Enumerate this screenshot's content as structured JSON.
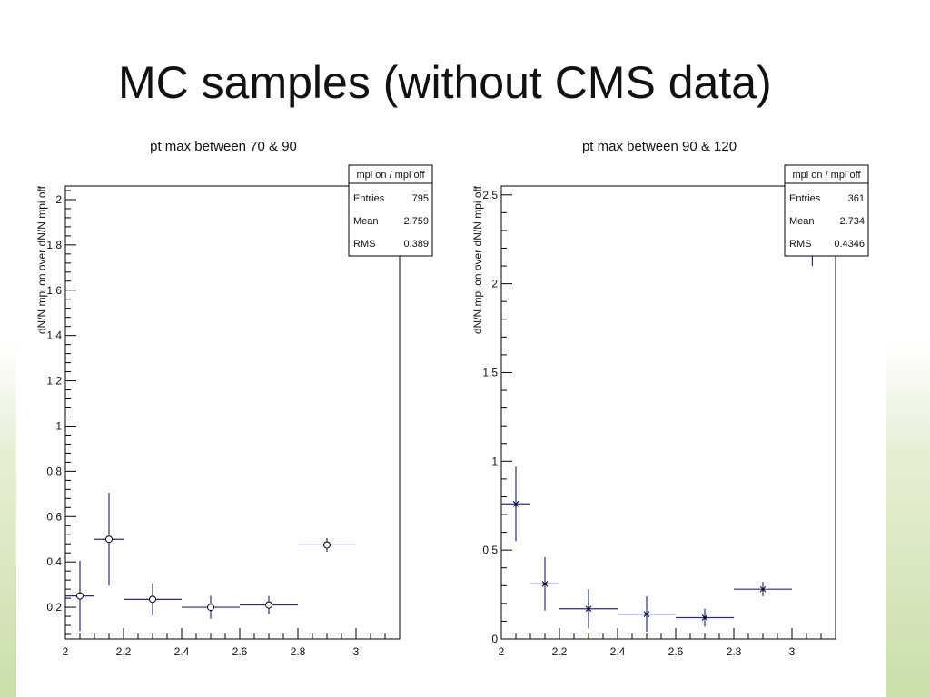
{
  "slide": {
    "title": "MC samples (without CMS data)"
  },
  "colors": {
    "marker": "#2a2a8a",
    "frame": "#000000",
    "background_green": "#cadfaa"
  },
  "chart_data": [
    {
      "type": "scatter",
      "title": "pt max between 70 & 90",
      "xlabel": "",
      "ylabel": "dN/N mpi on over dN/N mpi off",
      "xlim": [
        2.0,
        3.15
      ],
      "ylim": [
        0.06,
        2.06
      ],
      "xticks": [
        2,
        2.2,
        2.4,
        2.6,
        2.8,
        3
      ],
      "xtick_labels": [
        "2",
        "2.2",
        "2.4",
        "2.6",
        "2.8",
        "3"
      ],
      "yticks": [
        0.2,
        0.4,
        0.6,
        0.8,
        1,
        1.2,
        1.4,
        1.6,
        1.8,
        2
      ],
      "ytick_labels": [
        "0.2",
        "0.4",
        "0.6",
        "0.8",
        "1",
        "1.2",
        "1.4",
        "1.6",
        "1.8",
        "2"
      ],
      "marker": "circle",
      "points": [
        {
          "x": 2.05,
          "xerr": 0.05,
          "y": 0.25,
          "yerr": 0.155
        },
        {
          "x": 2.15,
          "xerr": 0.05,
          "y": 0.5,
          "yerr": 0.205
        },
        {
          "x": 2.3,
          "xerr": 0.1,
          "y": 0.235,
          "yerr": 0.07
        },
        {
          "x": 2.5,
          "xerr": 0.1,
          "y": 0.2,
          "yerr": 0.05
        },
        {
          "x": 2.7,
          "xerr": 0.1,
          "y": 0.21,
          "yerr": 0.04
        },
        {
          "x": 2.9,
          "xerr": 0.1,
          "y": 0.475,
          "yerr": 0.03
        }
      ],
      "stats": {
        "name": "mpi on / mpi off",
        "rows": [
          {
            "label": "Entries",
            "value": "795"
          },
          {
            "label": "Mean",
            "value": "2.759"
          },
          {
            "label": "RMS",
            "value": "0.389"
          }
        ]
      }
    },
    {
      "type": "scatter",
      "title": "pt max between 90 & 120",
      "xlabel": "",
      "ylabel": "dN/N mpi on over dN/N mpi off",
      "xlim": [
        2.0,
        3.15
      ],
      "ylim": [
        0,
        2.55
      ],
      "xticks": [
        2,
        2.2,
        2.4,
        2.6,
        2.8,
        3
      ],
      "xtick_labels": [
        "2",
        "2.2",
        "2.4",
        "2.6",
        "2.8",
        "3"
      ],
      "yticks": [
        0,
        0.5,
        1,
        1.5,
        2,
        2.5
      ],
      "ytick_labels": [
        "0",
        "0.5",
        "1",
        "1.5",
        "2",
        "2.5"
      ],
      "marker": "star",
      "points": [
        {
          "x": 2.05,
          "xerr": 0.05,
          "y": 0.76,
          "yerr": 0.21
        },
        {
          "x": 2.15,
          "xerr": 0.05,
          "y": 0.31,
          "yerr": 0.15
        },
        {
          "x": 2.3,
          "xerr": 0.1,
          "y": 0.17,
          "yerr": 0.11
        },
        {
          "x": 2.5,
          "xerr": 0.1,
          "y": 0.14,
          "yerr": 0.1
        },
        {
          "x": 2.7,
          "xerr": 0.1,
          "y": 0.12,
          "yerr": 0.05
        },
        {
          "x": 2.9,
          "xerr": 0.1,
          "y": 0.28,
          "yerr": 0.04
        },
        {
          "x": 3.07,
          "xerr": 0.0,
          "y": 2.18,
          "yerr": 0.08
        }
      ],
      "stats": {
        "name": "mpi on / mpi off",
        "rows": [
          {
            "label": "Entries",
            "value": "361"
          },
          {
            "label": "Mean",
            "value": "2.734"
          },
          {
            "label": "RMS",
            "value": "0.4346"
          }
        ]
      }
    }
  ]
}
